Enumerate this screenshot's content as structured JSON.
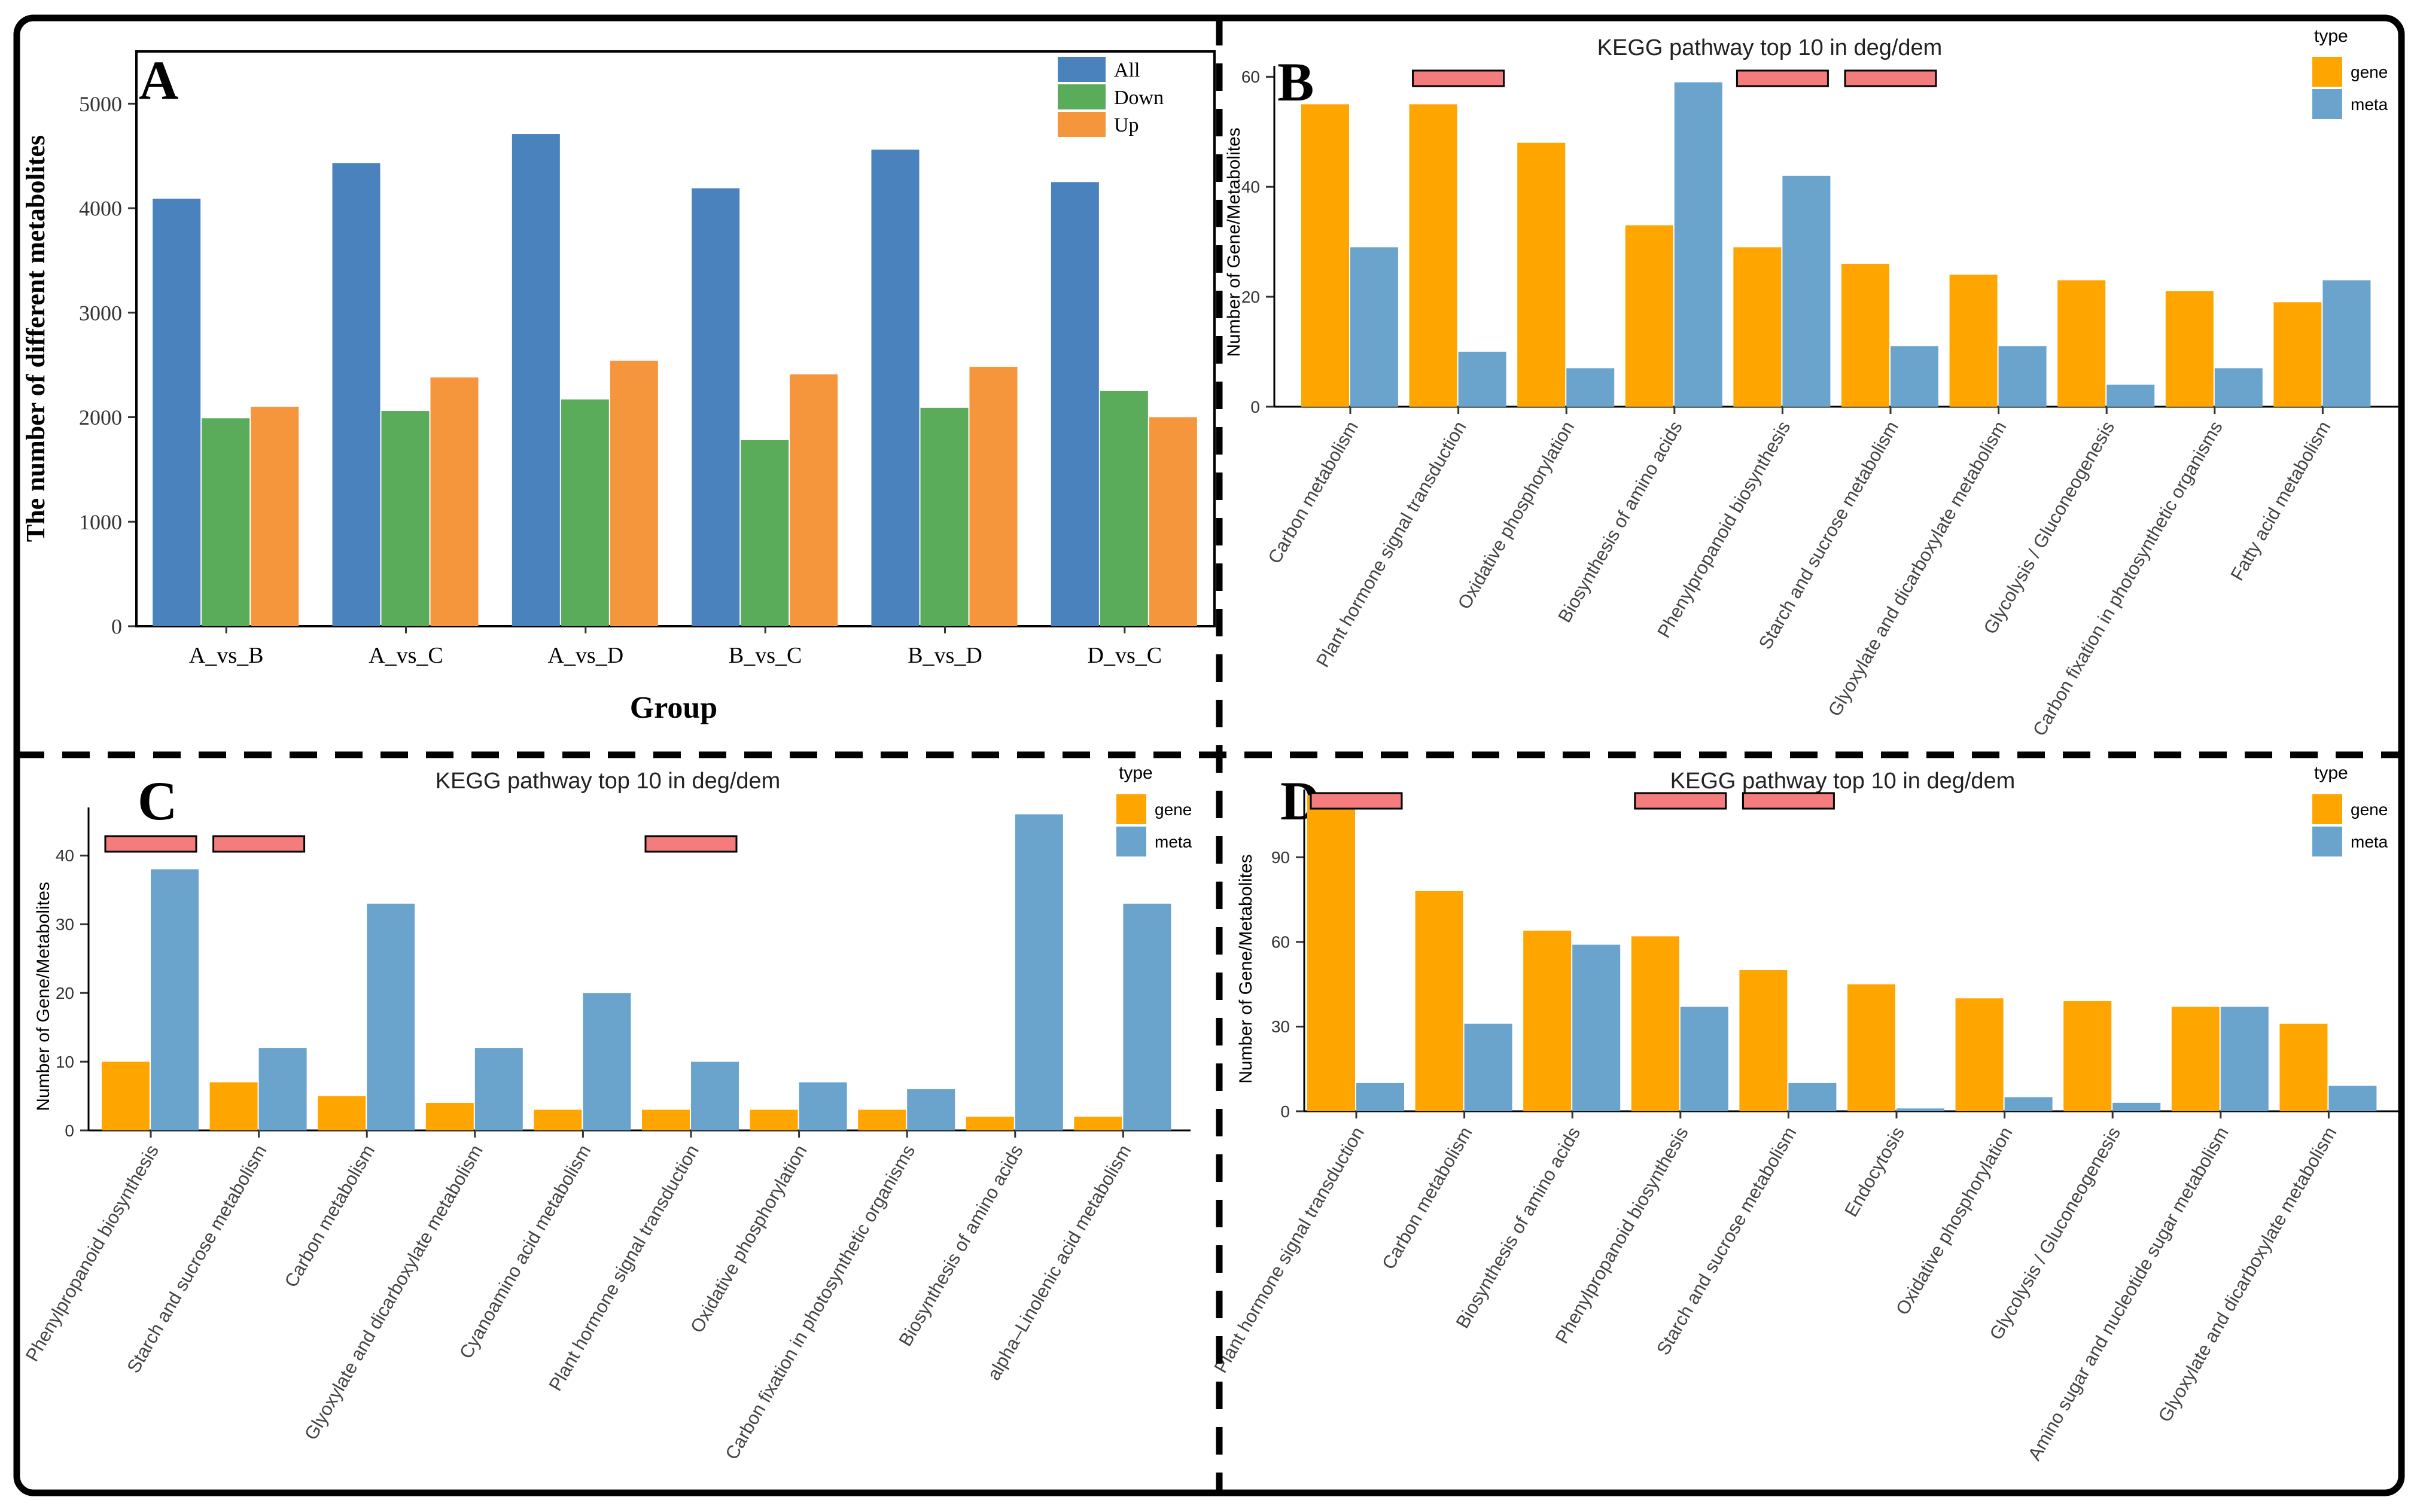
{
  "colors": {
    "all": "#4a82bd",
    "down": "#5aab5a",
    "up": "#f5953c",
    "gene": "#ffa500",
    "meta": "#6aa4cc",
    "highlight": "#f47c7c",
    "frame": "#000000"
  },
  "chart_data": [
    {
      "panel": "A",
      "type": "bar",
      "title": "",
      "xlabel": "Group",
      "ylabel": "The number of different metabolites",
      "ylim": [
        0,
        5500
      ],
      "yticks": [
        0,
        1000,
        2000,
        3000,
        4000,
        5000
      ],
      "categories": [
        "A_vs_B",
        "A_vs_C",
        "A_vs_D",
        "B_vs_C",
        "B_vs_D",
        "D_vs_C"
      ],
      "series": [
        {
          "name": "All",
          "color_key": "all",
          "values": [
            4090,
            4430,
            4710,
            4190,
            4560,
            4250
          ]
        },
        {
          "name": "Down",
          "color_key": "down",
          "values": [
            1990,
            2060,
            2170,
            1780,
            2090,
            2250
          ]
        },
        {
          "name": "Up",
          "color_key": "up",
          "values": [
            2100,
            2380,
            2540,
            2410,
            2480,
            2000
          ]
        }
      ],
      "legend_title": "",
      "highlighted": []
    },
    {
      "panel": "B",
      "type": "bar",
      "title": "KEGG pathway top 10 in deg/dem",
      "xlabel": "",
      "ylabel": "Number of Gene/Metabolites",
      "ylim": [
        0,
        62
      ],
      "yticks": [
        0,
        20,
        40,
        60
      ],
      "categories": [
        "Carbon metabolism",
        "Plant hormone signal transduction",
        "Oxidative phosphorylation",
        "Biosynthesis of amino acids",
        "Phenylpropanoid biosynthesis",
        "Starch and sucrose metabolism",
        "Glyoxylate and dicarboxylate metabolism",
        "Glycolysis / Gluconeogenesis",
        "Carbon fixation in photosynthetic organisms",
        "Fatty acid metabolism"
      ],
      "series": [
        {
          "name": "gene",
          "color_key": "gene",
          "values": [
            55,
            55,
            48,
            33,
            29,
            26,
            24,
            23,
            21,
            19
          ]
        },
        {
          "name": "meta",
          "color_key": "meta",
          "values": [
            29,
            10,
            7,
            59,
            42,
            11,
            11,
            4,
            7,
            23
          ]
        }
      ],
      "legend_title": "type",
      "highlighted": [
        1,
        4,
        5
      ]
    },
    {
      "panel": "C",
      "type": "bar",
      "title": "KEGG pathway top 10 in deg/dem",
      "xlabel": "",
      "ylabel": "Number of Gene/Metabolites",
      "ylim": [
        0,
        47
      ],
      "yticks": [
        0,
        10,
        20,
        30,
        40
      ],
      "categories": [
        "Phenylpropanoid biosynthesis",
        "Starch and sucrose metabolism",
        "Carbon metabolism",
        "Glyoxylate and dicarboxylate metabolism",
        "Cyanoamino acid metabolism",
        "Plant hormone signal transduction",
        "Oxidative phosphorylation",
        "Carbon fixation in photosynthetic organisms",
        "Biosynthesis of amino acids",
        "alpha–Linolenic acid metabolism"
      ],
      "series": [
        {
          "name": "gene",
          "color_key": "gene",
          "values": [
            10,
            7,
            5,
            4,
            3,
            3,
            3,
            3,
            2,
            2
          ]
        },
        {
          "name": "meta",
          "color_key": "meta",
          "values": [
            38,
            12,
            33,
            12,
            20,
            10,
            7,
            6,
            46,
            33
          ]
        }
      ],
      "legend_title": "type",
      "highlighted": [
        0,
        1,
        5
      ]
    },
    {
      "panel": "D",
      "type": "bar",
      "title": "KEGG pathway top 10 in deg/dem",
      "xlabel": "",
      "ylabel": "Number of Gene/Metabolites",
      "ylim": [
        0,
        114
      ],
      "yticks": [
        0,
        30,
        60,
        90
      ],
      "categories": [
        "Plant hormone signal transduction",
        "Carbon metabolism",
        "Biosynthesis of amino acids",
        "Phenylpropanoid biosynthesis",
        "Starch and sucrose metabolism",
        "Endocytosis",
        "Oxidative phosphorylation",
        "Glycolysis / Gluconeogenesis",
        "Amino sugar and nucleotide sugar metabolism",
        "Glyoxylate and dicarboxylate metabolism"
      ],
      "series": [
        {
          "name": "gene",
          "color_key": "gene",
          "values": [
            112,
            78,
            64,
            62,
            50,
            45,
            40,
            39,
            37,
            31
          ]
        },
        {
          "name": "meta",
          "color_key": "meta",
          "values": [
            10,
            31,
            59,
            37,
            10,
            1,
            5,
            3,
            37,
            9
          ]
        }
      ],
      "legend_title": "type",
      "highlighted": [
        0,
        3,
        4
      ]
    }
  ]
}
